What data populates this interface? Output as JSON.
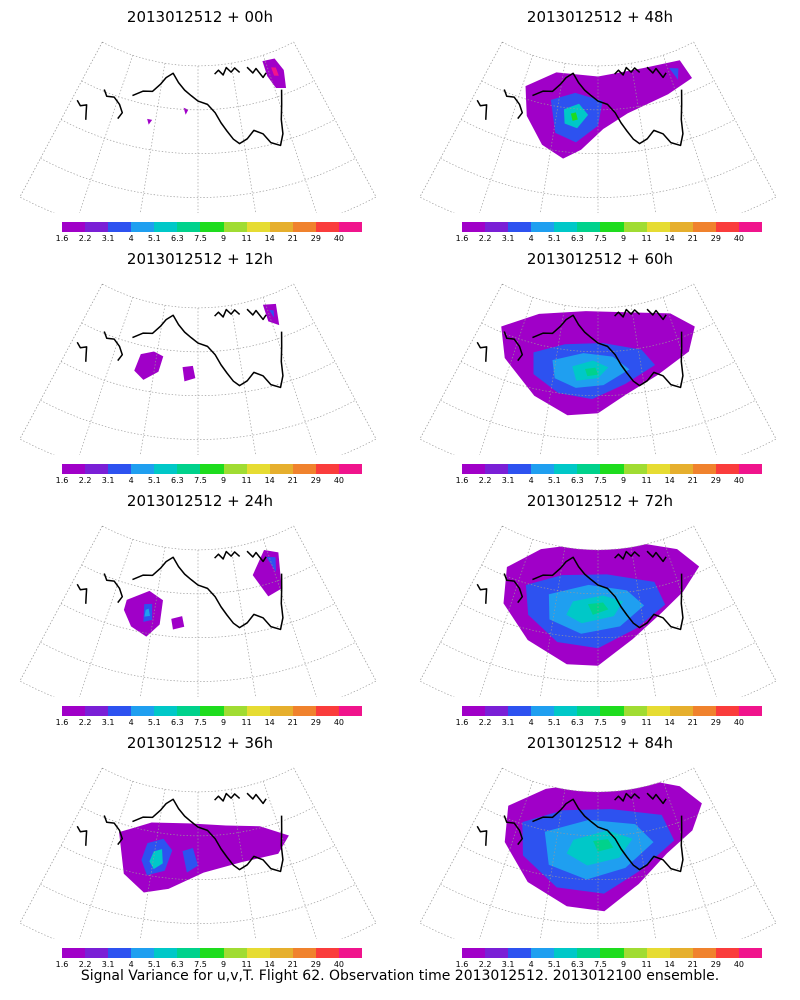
{
  "colorbar": {
    "labels": [
      "1.6",
      "2.2",
      "3.1",
      "4",
      "5.1",
      "6.3",
      "7.5",
      "9",
      "11",
      "14",
      "21",
      "29",
      "40"
    ],
    "colors": [
      "#a000c8",
      "#7a1fd6",
      "#2d52f0",
      "#1f9ff0",
      "#00c8c8",
      "#00d28c",
      "#1edc1e",
      "#a0dc32",
      "#e6dc32",
      "#e6af2d",
      "#f0822d",
      "#fa3c3c",
      "#f0148c"
    ]
  },
  "panels": [
    {
      "title": "2013012512 + 00h",
      "lead_hours": 0
    },
    {
      "title": "2013012512 + 48h",
      "lead_hours": 48
    },
    {
      "title": "2013012512 + 12h",
      "lead_hours": 12
    },
    {
      "title": "2013012512 + 60h",
      "lead_hours": 60
    },
    {
      "title": "2013012512 + 24h",
      "lead_hours": 24
    },
    {
      "title": "2013012512 + 72h",
      "lead_hours": 72
    },
    {
      "title": "2013012512 + 36h",
      "lead_hours": 36
    },
    {
      "title": "2013012512 + 84h",
      "lead_hours": 84
    }
  ],
  "footer": "Signal Variance for u,v,T. Flight 62. Observation time 2013012512. 2013012100 ensemble."
}
